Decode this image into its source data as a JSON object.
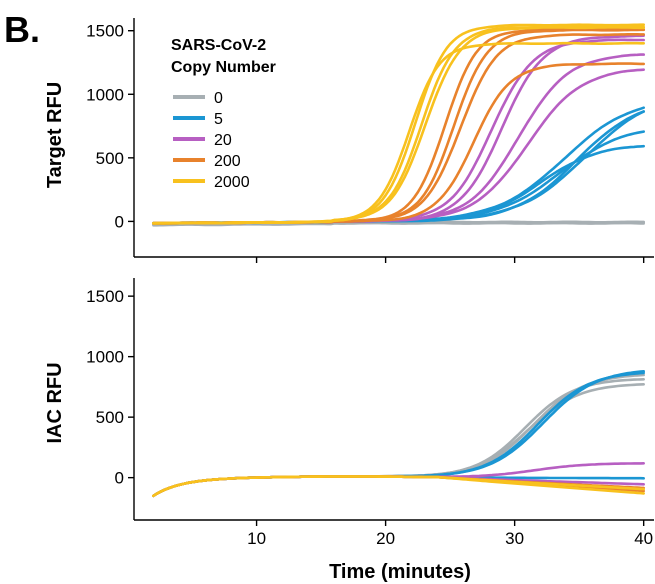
{
  "panel_label": "B.",
  "xlabel": "Time (minutes)",
  "legend": {
    "title_line1": "SARS-CoV-2",
    "title_line2": "Copy Number"
  },
  "colors": {
    "0": "#A7AFB3",
    "5": "#1B96D3",
    "20": "#B75FC2",
    "200": "#E8822C",
    "2000": "#F8C11E"
  },
  "chart_data": [
    {
      "type": "line",
      "panel": "top",
      "ylabel": "Target RFU",
      "xlim": [
        0.5,
        40.8
      ],
      "ylim": [
        -280,
        1600
      ],
      "xticks": [
        10,
        20,
        30,
        40
      ],
      "yticks": [
        0,
        500,
        1000,
        1500
      ],
      "legend_entries": [
        "0",
        "5",
        "20",
        "200",
        "2000"
      ],
      "series": [
        {
          "name": "0",
          "curves": [
            {
              "base": -10,
              "plateau": -10,
              "mid": 999,
              "k": 1
            },
            {
              "base": -5,
              "plateau": 0,
              "mid": 999,
              "k": 1
            },
            {
              "base": -15,
              "plateau": 10,
              "mid": 999,
              "k": 1
            }
          ]
        },
        {
          "name": "5",
          "curves": [
            {
              "base": 0,
              "plateau": 960,
              "mid": 34.8,
              "k": 0.42
            },
            {
              "base": 0,
              "plateau": 1020,
              "mid": 35.5,
              "k": 0.38
            },
            {
              "base": 0,
              "plateau": 760,
              "mid": 33.5,
              "k": 0.4
            },
            {
              "base": 0,
              "plateau": 610,
              "mid": 32.0,
              "k": 0.45
            },
            {
              "base": 0,
              "plateau": 980,
              "mid": 33.8,
              "k": 0.38
            }
          ]
        },
        {
          "name": "20",
          "curves": [
            {
              "base": 0,
              "plateau": 1460,
              "mid": 29.0,
              "k": 0.62
            },
            {
              "base": 0,
              "plateau": 1320,
              "mid": 30.3,
              "k": 0.52
            },
            {
              "base": 0,
              "plateau": 1210,
              "mid": 31.0,
              "k": 0.48
            },
            {
              "base": 0,
              "plateau": 1430,
              "mid": 28.2,
              "k": 0.62
            }
          ]
        },
        {
          "name": "200",
          "curves": [
            {
              "base": 0,
              "plateau": 1505,
              "mid": 25.3,
              "k": 0.78
            },
            {
              "base": 0,
              "plateau": 1470,
              "mid": 25.8,
              "k": 0.72
            },
            {
              "base": 0,
              "plateau": 1240,
              "mid": 26.8,
              "k": 0.7
            },
            {
              "base": 0,
              "plateau": 1510,
              "mid": 24.6,
              "k": 0.82
            }
          ]
        },
        {
          "name": "2000",
          "curves": [
            {
              "base": 0,
              "plateau": 1545,
              "mid": 22.3,
              "k": 0.82
            },
            {
              "base": 0,
              "plateau": 1400,
              "mid": 21.8,
              "k": 0.85
            },
            {
              "base": 0,
              "plateau": 1530,
              "mid": 22.8,
              "k": 0.78
            },
            {
              "base": 0,
              "plateau": 1525,
              "mid": 23.1,
              "k": 0.75
            }
          ]
        }
      ]
    },
    {
      "type": "line",
      "panel": "bottom",
      "ylabel": "IAC RFU",
      "xlim": [
        0.5,
        40.8
      ],
      "ylim": [
        -350,
        1650
      ],
      "xticks": [
        10,
        20,
        30,
        40
      ],
      "xticklabels": [
        "10",
        "20",
        "30",
        "40"
      ],
      "yticks": [
        0,
        500,
        1000,
        1500
      ],
      "series": [
        {
          "name": "0",
          "curves": [
            {
              "base": 0,
              "plateau": 780,
              "mid": 31.0,
              "k": 0.5
            },
            {
              "base": 0,
              "plateau": 860,
              "mid": 31.4,
              "k": 0.5
            },
            {
              "base": 0,
              "plateau": 820,
              "mid": 30.8,
              "k": 0.52
            }
          ]
        },
        {
          "name": "5",
          "curves": [
            {
              "base": 0,
              "plateau": 880,
              "mid": 31.8,
              "k": 0.5
            },
            {
              "base": 0,
              "plateau": 900,
              "mid": 32.2,
              "k": 0.48
            },
            {
              "base": -5,
              "plateau": -5,
              "mid": 999,
              "k": 1
            }
          ]
        },
        {
          "name": "20",
          "curves": [
            {
              "base": 0,
              "plateau": 120,
              "mid": 31.5,
              "k": 0.5
            },
            {
              "base": -55,
              "plateau": -55,
              "mid": 999,
              "k": 1
            }
          ]
        },
        {
          "name": "200",
          "curves": [
            {
              "base": -85,
              "plateau": -85,
              "mid": 999,
              "k": 1
            },
            {
              "base": -110,
              "plateau": -110,
              "mid": 999,
              "k": 1
            }
          ]
        },
        {
          "name": "2000",
          "curves": [
            {
              "base": -95,
              "plateau": -95,
              "mid": 999,
              "k": 1
            },
            {
              "base": -130,
              "plateau": -130,
              "mid": 999,
              "k": 1
            }
          ]
        }
      ]
    }
  ]
}
